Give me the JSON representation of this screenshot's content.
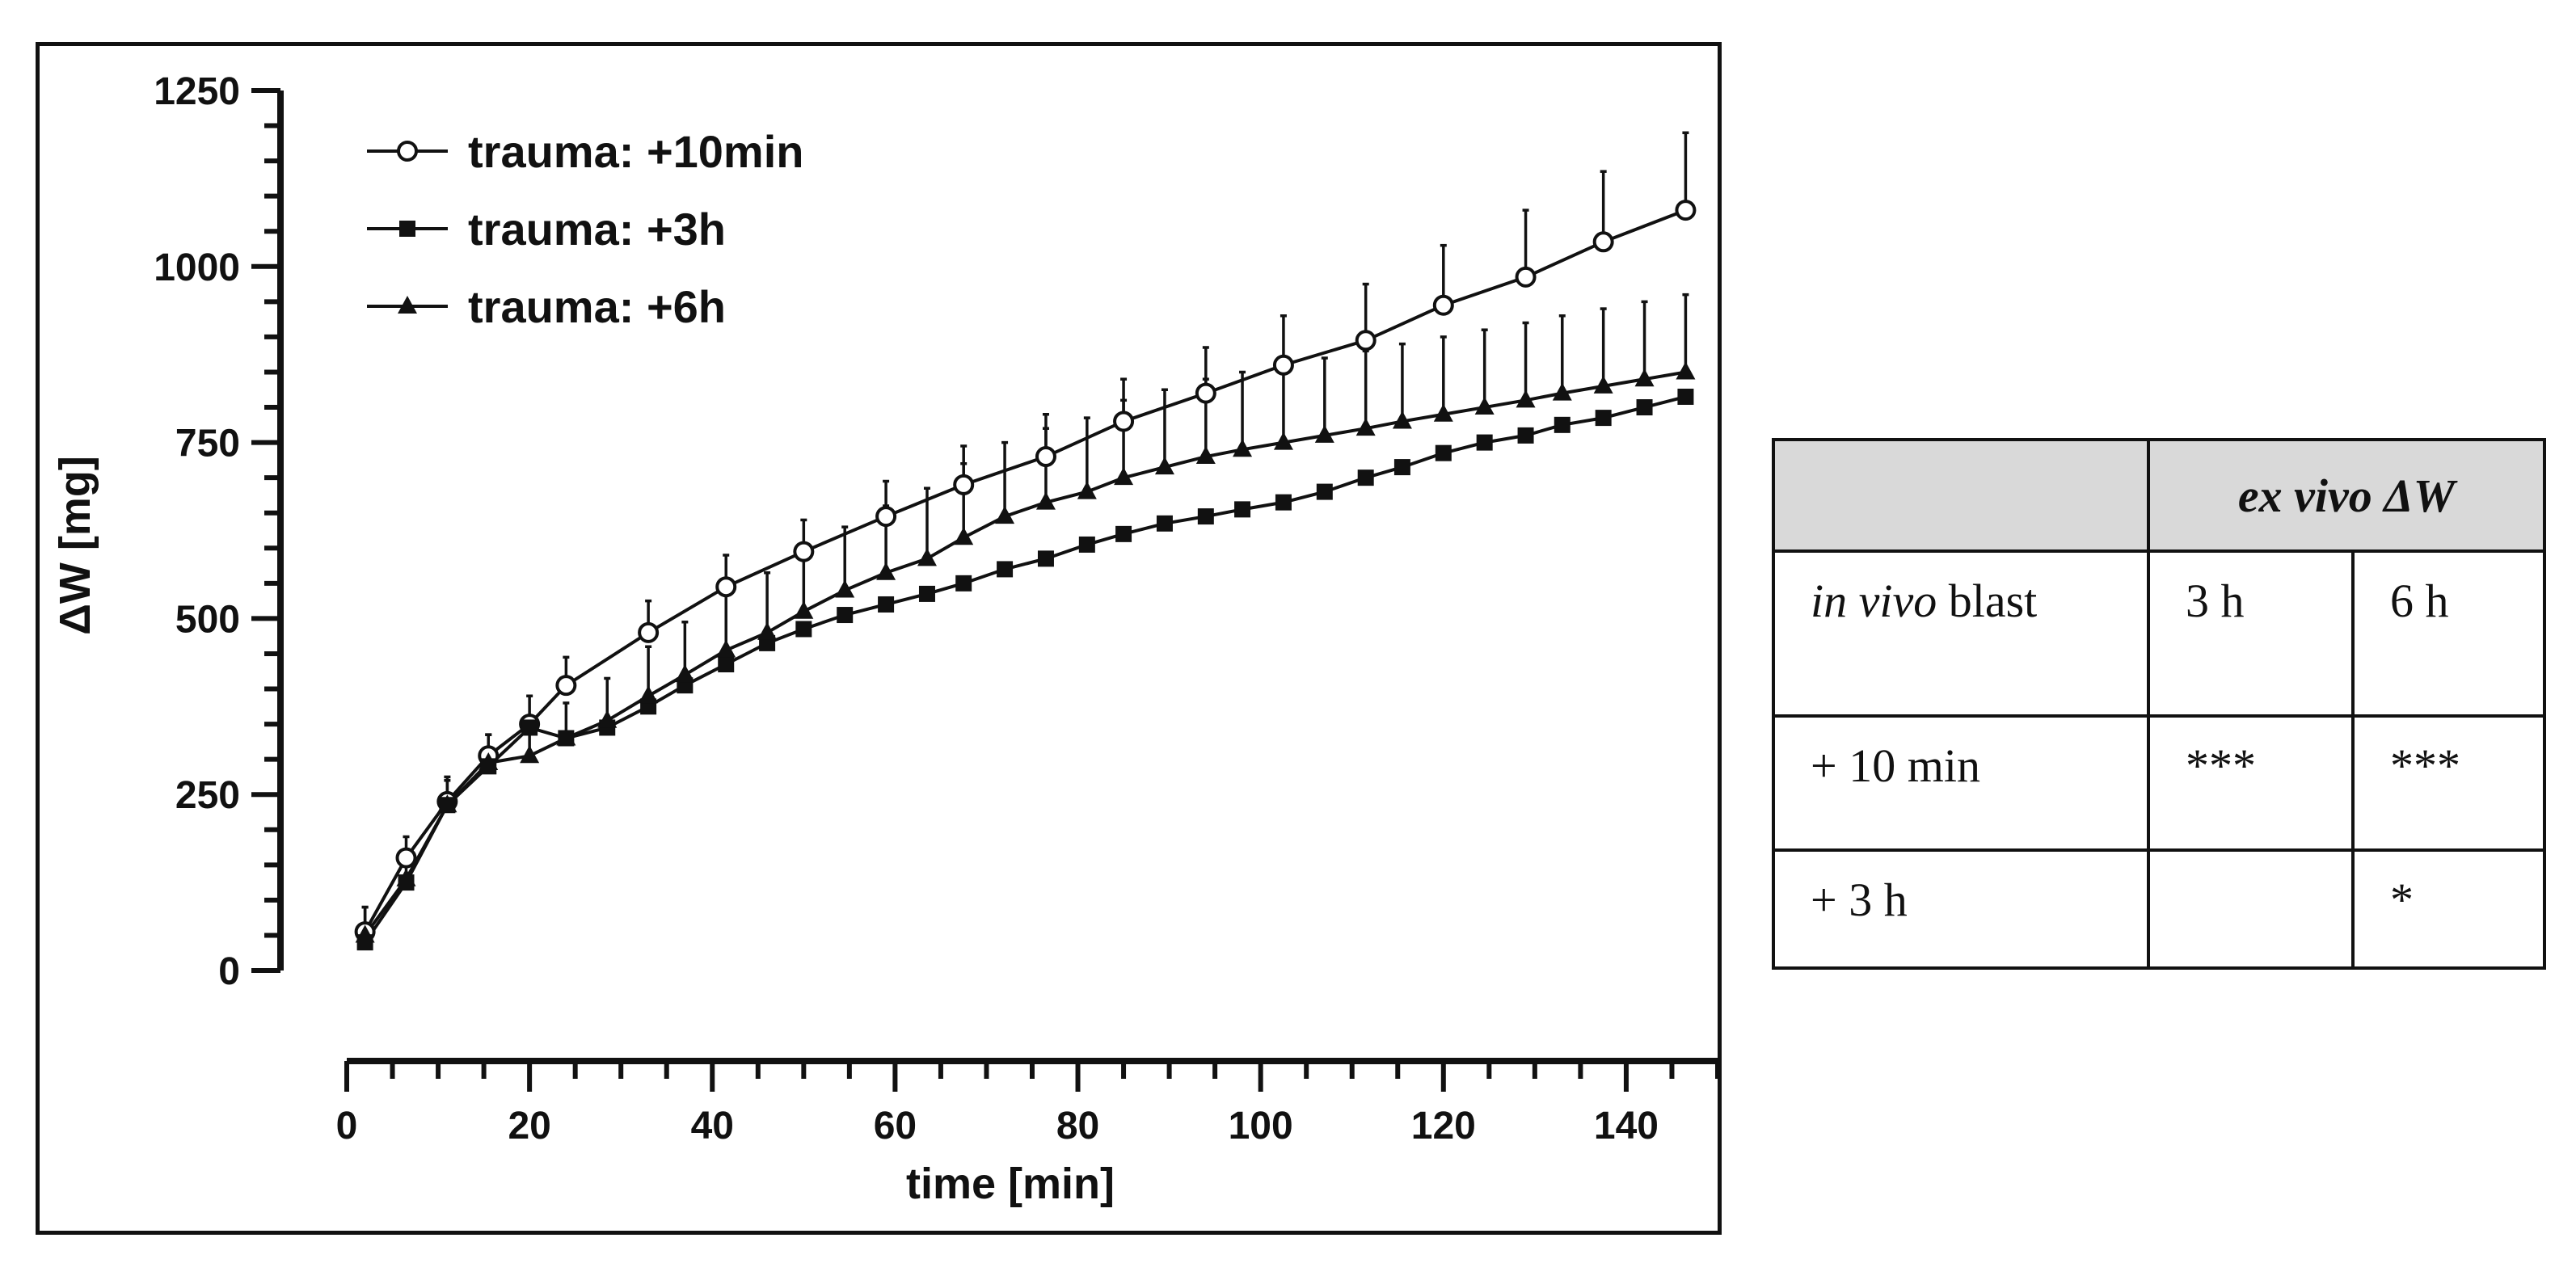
{
  "colors": {
    "ink": "#111111",
    "table_header_bg": "#d9d9d9",
    "open_marker_fill": "#ffffff"
  },
  "chart_data": {
    "type": "line",
    "title": "",
    "xlabel": "time [min]",
    "ylabel": "ΔW [mg]",
    "xlim": [
      0,
      150
    ],
    "ylim": [
      0,
      1250
    ],
    "xticks": [
      0,
      20,
      40,
      60,
      80,
      100,
      120,
      140
    ],
    "yticks": [
      0,
      250,
      500,
      750,
      1000,
      1250
    ],
    "xtick_labels": [
      "0",
      "20",
      "40",
      "60",
      "80",
      "100",
      "120",
      "140"
    ],
    "ytick_labels": [
      "0",
      "250",
      "500",
      "750",
      "1000",
      "1250"
    ],
    "legend_position": "top-left",
    "series": [
      {
        "name": "trauma: +10min",
        "marker": "open-circle",
        "x": [
          2,
          6.5,
          11,
          15.5,
          20,
          24,
          33,
          41.5,
          50,
          59,
          67.5,
          76.5,
          85,
          94,
          102.5,
          111.5,
          120,
          129,
          137.5,
          146.5
        ],
        "y": [
          55,
          160,
          240,
          305,
          350,
          405,
          480,
          545,
          595,
          645,
          690,
          730,
          780,
          820,
          860,
          895,
          945,
          985,
          1035,
          1080
        ],
        "err_plus": [
          35,
          30,
          30,
          30,
          40,
          40,
          45,
          45,
          45,
          50,
          55,
          60,
          60,
          65,
          70,
          80,
          85,
          95,
          100,
          110
        ]
      },
      {
        "name": "trauma: +3h",
        "marker": "filled-square",
        "x": [
          2,
          6.5,
          11,
          15.5,
          20,
          24,
          28.5,
          33,
          37,
          41.5,
          46,
          50,
          54.5,
          59,
          63.5,
          67.5,
          72,
          76.5,
          81,
          85,
          89.5,
          94,
          98,
          102.5,
          107,
          111.5,
          115.5,
          120,
          124.5,
          129,
          133,
          137.5,
          142,
          146.5
        ],
        "y": [
          40,
          125,
          235,
          290,
          345,
          330,
          345,
          375,
          405,
          435,
          465,
          485,
          505,
          520,
          535,
          550,
          570,
          585,
          605,
          620,
          635,
          645,
          655,
          665,
          680,
          700,
          715,
          735,
          750,
          760,
          775,
          785,
          800,
          815
        ],
        "err_plus": []
      },
      {
        "name": "trauma: +6h",
        "marker": "filled-triangle",
        "x": [
          2,
          6.5,
          11,
          15.5,
          20,
          24,
          28.5,
          33,
          37,
          41.5,
          46,
          50,
          54.5,
          59,
          63.5,
          67.5,
          72,
          76.5,
          81,
          85,
          89.5,
          94,
          98,
          102.5,
          107,
          111.5,
          115.5,
          120,
          124.5,
          129,
          133,
          137.5,
          142,
          146.5
        ],
        "y": [
          50,
          130,
          235,
          295,
          305,
          330,
          355,
          390,
          420,
          455,
          480,
          510,
          540,
          565,
          585,
          615,
          645,
          665,
          680,
          700,
          715,
          730,
          740,
          750,
          760,
          770,
          780,
          790,
          800,
          810,
          820,
          830,
          840,
          850
        ],
        "err_plus": [
          40,
          40,
          40,
          40,
          45,
          50,
          60,
          70,
          75,
          80,
          85,
          90,
          90,
          95,
          100,
          105,
          105,
          105,
          105,
          110,
          110,
          110,
          110,
          110,
          110,
          110,
          110,
          110,
          110,
          110,
          110,
          110,
          110,
          110
        ]
      }
    ]
  },
  "table": {
    "header_group": "ex vivo ΔW",
    "row_header_italic": "in vivo",
    "row_header_rest": " blast",
    "col_3h": "3 h",
    "col_6h": "6 h",
    "rows": [
      {
        "label": "+ 10 min",
        "c3h": "***",
        "c6h": "***"
      },
      {
        "label": "+ 3 h",
        "c3h": "",
        "c6h": "*"
      }
    ]
  }
}
